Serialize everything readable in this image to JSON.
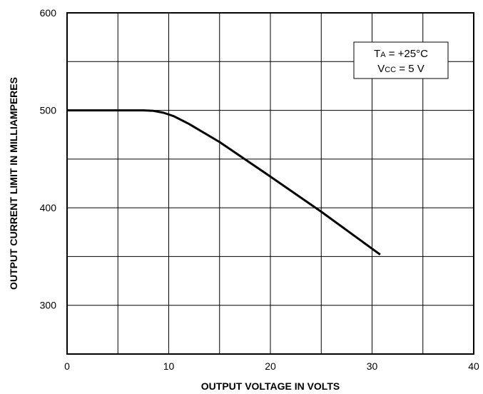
{
  "chart_data": {
    "type": "line",
    "xlabel": "OUTPUT VOLTAGE IN VOLTS",
    "ylabel": "OUTPUT CURRENT LIMIT IN MILLIAMPERES",
    "xlim": [
      0,
      40
    ],
    "ylim": [
      250,
      600
    ],
    "x_ticks": [
      0,
      10,
      20,
      30,
      40
    ],
    "x_tick_labels": [
      "0",
      "10",
      "20",
      "30",
      "40"
    ],
    "x_grid": [
      0,
      5,
      10,
      15,
      20,
      25,
      30,
      35,
      40
    ],
    "y_ticks": [
      300,
      400,
      500,
      600
    ],
    "y_tick_labels": [
      "300",
      "400",
      "500",
      "600"
    ],
    "y_grid": [
      300,
      350,
      400,
      450,
      500,
      550,
      600
    ],
    "grid": true,
    "series": [
      {
        "x": [
          0,
          7.5,
          8.5,
          9.5,
          10.5,
          12,
          15,
          20,
          25,
          30.8
        ],
        "y": [
          500,
          500,
          499.5,
          497.5,
          494,
          486,
          467.5,
          432,
          396,
          352
        ],
        "color": "#000000"
      }
    ],
    "annotation": {
      "line1": {
        "main": "T",
        "sub": "A",
        "rest": " = +25°C"
      },
      "line2": {
        "main": "V",
        "sub": "CC",
        "rest": " = 5 V"
      }
    }
  }
}
